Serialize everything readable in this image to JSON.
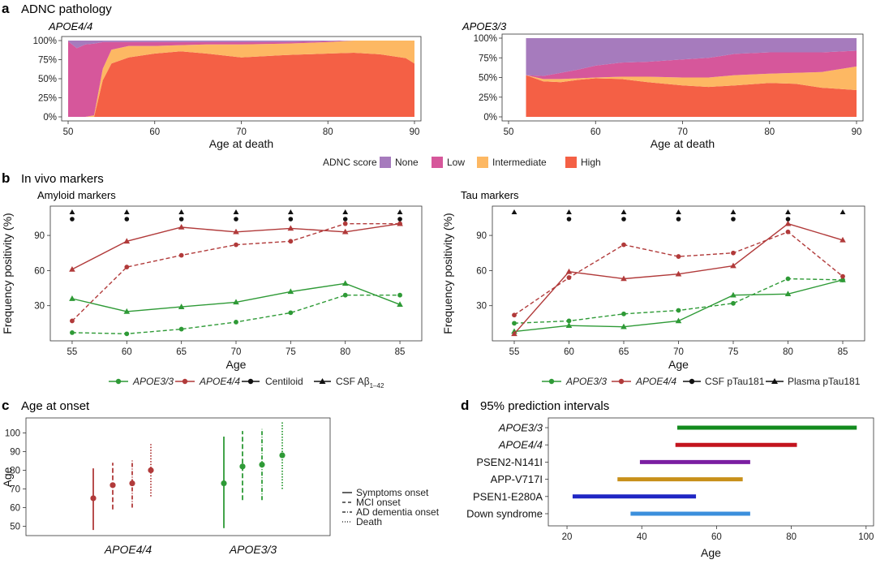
{
  "colors": {
    "none": "#a67bbd",
    "low": "#d6579b",
    "intermediate": "#fdb863",
    "high": "#f46045",
    "apoe33": "#2e9a36",
    "apoe44": "#b13a3a",
    "black": "#111111"
  },
  "panel_a": {
    "label": "a",
    "title": "ADNC pathology"
  },
  "panel_b": {
    "label": "b",
    "title": "In vivo markers"
  },
  "panel_c": {
    "label": "c",
    "title": "Age at onset"
  },
  "panel_d": {
    "label": "d",
    "title": "95% prediction intervals"
  },
  "legend_a": {
    "title": "ADNC score",
    "items": [
      "None",
      "Low",
      "Intermediate",
      "High"
    ]
  },
  "legend_b1": {
    "items": [
      "APOE3/3",
      "APOE4/4",
      "Centiloid"
    ],
    "csf_prefix": "CSF A",
    "csf_beta": "β",
    "csf_sub": "1–42"
  },
  "legend_b2": {
    "items": [
      "APOE3/3",
      "APOE4/4",
      "CSF pTau181",
      "Plasma pTau181"
    ]
  },
  "legend_c": {
    "items": [
      "Symptoms onset",
      "MCI onset",
      "AD dementia onset",
      "Death"
    ]
  },
  "chart_data": [
    {
      "type": "area",
      "title": "APOE4/4",
      "xlabel": "Age at death",
      "ylabel": "",
      "xlim": [
        50,
        90
      ],
      "ylim": [
        0,
        1
      ],
      "stacked": true,
      "normalized": true,
      "x": [
        50,
        51,
        52,
        53,
        54,
        55,
        57,
        60,
        63,
        66,
        70,
        75,
        80,
        83,
        86,
        89,
        90
      ],
      "series": [
        {
          "name": "High",
          "values": [
            0,
            0,
            0,
            0,
            0.48,
            0.7,
            0.78,
            0.83,
            0.86,
            0.83,
            0.78,
            0.81,
            0.83,
            0.84,
            0.82,
            0.77,
            0.7
          ]
        },
        {
          "name": "Intermediate",
          "values": [
            0,
            0,
            0,
            0.02,
            0.15,
            0.18,
            0.15,
            0.1,
            0.08,
            0.12,
            0.17,
            0.15,
            0.15,
            0.16,
            0.18,
            0.23,
            0.3
          ]
        },
        {
          "name": "Low",
          "values": [
            0.99,
            0.9,
            0.95,
            0.94,
            0.35,
            0.1,
            0.05,
            0.05,
            0.04,
            0.03,
            0.03,
            0.02,
            0.01,
            0,
            0,
            0,
            0
          ]
        },
        {
          "name": "None",
          "values": [
            0.01,
            0.1,
            0.05,
            0.04,
            0.02,
            0.02,
            0.02,
            0.02,
            0.02,
            0.02,
            0.02,
            0.02,
            0.01,
            0,
            0,
            0,
            0
          ]
        }
      ],
      "xticks": [
        50,
        60,
        70,
        80,
        90
      ],
      "yticks": [
        "0%",
        "25%",
        "50%",
        "75%",
        "100%"
      ]
    },
    {
      "type": "area",
      "title": "APOE3/3",
      "xlabel": "Age at death",
      "ylabel": "",
      "xlim": [
        50,
        90
      ],
      "ylim": [
        0,
        1
      ],
      "stacked": true,
      "normalized": true,
      "x": [
        52,
        54,
        56,
        58,
        60,
        63,
        66,
        70,
        73,
        76,
        80,
        83,
        86,
        90
      ],
      "series": [
        {
          "name": "High",
          "values": [
            0.53,
            0.45,
            0.44,
            0.47,
            0.49,
            0.48,
            0.44,
            0.4,
            0.38,
            0.4,
            0.43,
            0.42,
            0.37,
            0.34
          ]
        },
        {
          "name": "Intermediate",
          "values": [
            0,
            0.03,
            0.04,
            0.02,
            0.01,
            0.03,
            0.07,
            0.1,
            0.12,
            0.13,
            0.12,
            0.14,
            0.2,
            0.3
          ]
        },
        {
          "name": "Low",
          "values": [
            0,
            0.04,
            0.08,
            0.11,
            0.15,
            0.18,
            0.19,
            0.23,
            0.25,
            0.27,
            0.27,
            0.26,
            0.25,
            0.2
          ]
        },
        {
          "name": "None",
          "values": [
            0.47,
            0.48,
            0.44,
            0.4,
            0.35,
            0.31,
            0.3,
            0.27,
            0.25,
            0.2,
            0.18,
            0.18,
            0.18,
            0.16
          ]
        }
      ],
      "xticks": [
        50,
        60,
        70,
        80,
        90
      ],
      "yticks": [
        "0%",
        "25%",
        "50%",
        "75%",
        "100%"
      ]
    },
    {
      "type": "line",
      "title": "Amyloid markers",
      "xlabel": "Age",
      "ylabel": "Frequency positivity (%)",
      "xlim": [
        53,
        87
      ],
      "ylim": [
        0,
        115
      ],
      "x": [
        55,
        60,
        65,
        70,
        75,
        80,
        85
      ],
      "series": [
        {
          "name": "APOE3/3",
          "marker": "CSF Aβ1–42",
          "line": "solid",
          "values": [
            36,
            25,
            29,
            33,
            42,
            49,
            31
          ]
        },
        {
          "name": "APOE3/3",
          "marker": "Centiloid",
          "line": "dashed",
          "values": [
            7,
            6,
            10,
            16,
            24,
            39,
            39
          ]
        },
        {
          "name": "APOE4/4",
          "marker": "CSF Aβ1–42",
          "line": "solid",
          "values": [
            61,
            85,
            97,
            93,
            96,
            93,
            100
          ]
        },
        {
          "name": "APOE4/4",
          "marker": "Centiloid",
          "line": "dashed",
          "values": [
            17,
            63,
            73,
            82,
            85,
            100,
            100
          ]
        }
      ],
      "significance": {
        "triangle": [
          55,
          60,
          65,
          70,
          75,
          80,
          85
        ],
        "circle": [
          55,
          60,
          65,
          70,
          75,
          80,
          85
        ]
      },
      "xticks": [
        55,
        60,
        65,
        70,
        75,
        80,
        85
      ],
      "yticks": [
        30,
        60,
        90
      ]
    },
    {
      "type": "line",
      "title": "Tau markers",
      "xlabel": "Age",
      "ylabel": "Frequency positivity (%)",
      "xlim": [
        53,
        87
      ],
      "ylim": [
        0,
        115
      ],
      "x": [
        55,
        60,
        65,
        70,
        75,
        80,
        85
      ],
      "series": [
        {
          "name": "APOE3/3",
          "marker": "Plasma pTau181",
          "line": "solid",
          "values": [
            8,
            13,
            12,
            17,
            39,
            40,
            52
          ]
        },
        {
          "name": "APOE3/3",
          "marker": "CSF pTau181",
          "line": "dashed",
          "values": [
            15,
            17,
            23,
            26,
            32,
            53,
            52
          ]
        },
        {
          "name": "APOE4/4",
          "marker": "Plasma pTau181",
          "line": "solid",
          "values": [
            6,
            59,
            53,
            57,
            64,
            100,
            86
          ]
        },
        {
          "name": "APOE4/4",
          "marker": "CSF pTau181",
          "line": "dashed",
          "values": [
            22,
            54,
            82,
            72,
            75,
            93,
            55
          ]
        }
      ],
      "significance": {
        "triangle": [
          55,
          60,
          65,
          70,
          75,
          80,
          85
        ],
        "circle": [
          60,
          65,
          70,
          75,
          80
        ]
      },
      "xticks": [
        55,
        60,
        65,
        70,
        75,
        80,
        85
      ],
      "yticks": [
        30,
        60,
        90
      ]
    },
    {
      "type": "scatter",
      "title": "Age at onset",
      "xlabel": "",
      "ylabel": "Age",
      "ylim": [
        45,
        108
      ],
      "categories": [
        "APOE4/4",
        "APOE3/3"
      ],
      "series": [
        {
          "group": "APOE4/4",
          "event": "Symptoms onset",
          "line": "solid",
          "mean": 65,
          "low": 48,
          "high": 81
        },
        {
          "group": "APOE4/4",
          "event": "MCI onset",
          "line": "dashed",
          "mean": 72,
          "low": 59,
          "high": 84
        },
        {
          "group": "APOE4/4",
          "event": "AD dementia onset",
          "line": "dashdot",
          "mean": 73,
          "low": 60,
          "high": 86
        },
        {
          "group": "APOE4/4",
          "event": "Death",
          "line": "dotted",
          "mean": 80,
          "low": 66,
          "high": 94
        },
        {
          "group": "APOE3/3",
          "event": "Symptoms onset",
          "line": "solid",
          "mean": 73,
          "low": 49,
          "high": 98
        },
        {
          "group": "APOE3/3",
          "event": "MCI onset",
          "line": "dashed",
          "mean": 82,
          "low": 64,
          "high": 101
        },
        {
          "group": "APOE3/3",
          "event": "AD dementia onset",
          "line": "dashdot",
          "mean": 83,
          "low": 64,
          "high": 102
        },
        {
          "group": "APOE3/3",
          "event": "Death",
          "line": "dotted",
          "mean": 88,
          "low": 70,
          "high": 106
        }
      ],
      "yticks": [
        50,
        60,
        70,
        80,
        90,
        100
      ]
    },
    {
      "type": "bar",
      "orientation": "horizontal",
      "title": "95% prediction intervals",
      "xlabel": "Age",
      "xlim": [
        15,
        102
      ],
      "categories": [
        "APOE3/3",
        "APOE4/4",
        "PSEN2-N141I",
        "APP-V717I",
        "PSEN1-E280A",
        "Down syndrome"
      ],
      "italic": [
        true,
        true,
        false,
        false,
        false,
        false
      ],
      "ranges": [
        [
          49.5,
          97.5
        ],
        [
          49,
          81.5
        ],
        [
          39.5,
          69
        ],
        [
          33.5,
          67
        ],
        [
          21.5,
          54.5
        ],
        [
          37,
          69
        ]
      ],
      "bar_colors": [
        "#138b1e",
        "#c3141e",
        "#7b1fa2",
        "#c8901a",
        "#1f26c4",
        "#3b8fdc"
      ],
      "xticks": [
        20,
        40,
        60,
        80,
        100
      ]
    }
  ]
}
